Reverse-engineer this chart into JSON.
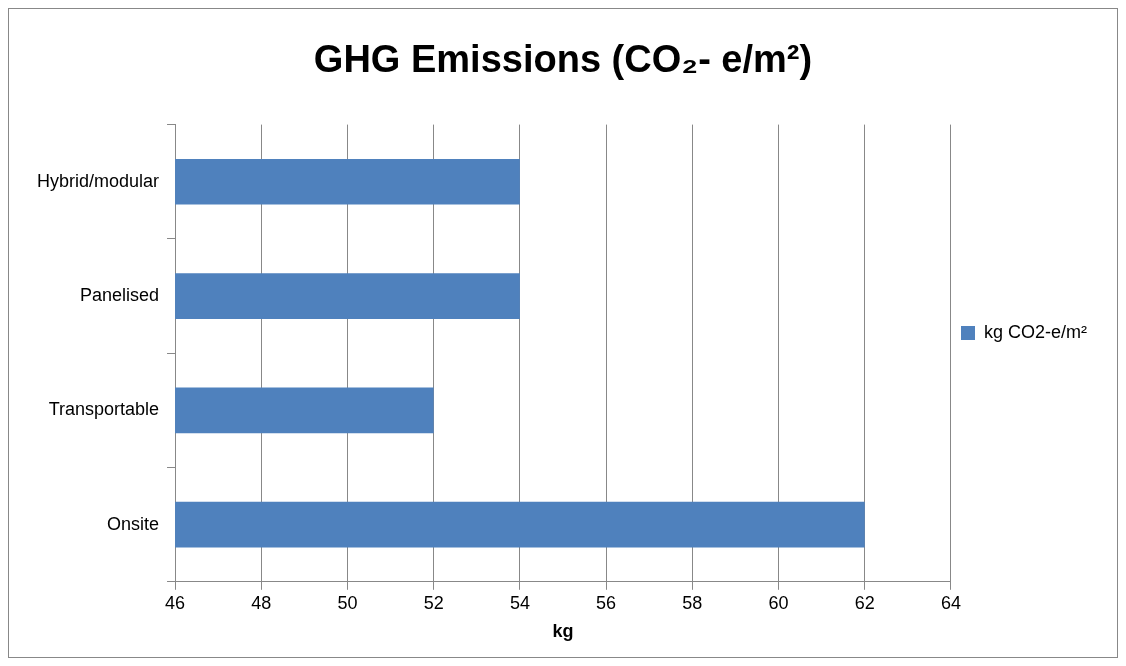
{
  "chart_data": {
    "type": "bar",
    "orientation": "horizontal",
    "title": "GHG Emissions (CO₂- e/m²)",
    "xlabel": "kg",
    "categories": [
      "Hybrid/modular",
      "Panelised",
      "Transportable",
      "Onsite"
    ],
    "series": [
      {
        "name": "kg CO2-e/m²",
        "color": "#4f81bd",
        "values": [
          54,
          54,
          52,
          62
        ]
      }
    ],
    "xlim": [
      46,
      64
    ],
    "xticks": [
      46,
      48,
      50,
      52,
      54,
      56,
      58,
      60,
      62,
      64
    ],
    "grid": "x",
    "legend": "right"
  }
}
